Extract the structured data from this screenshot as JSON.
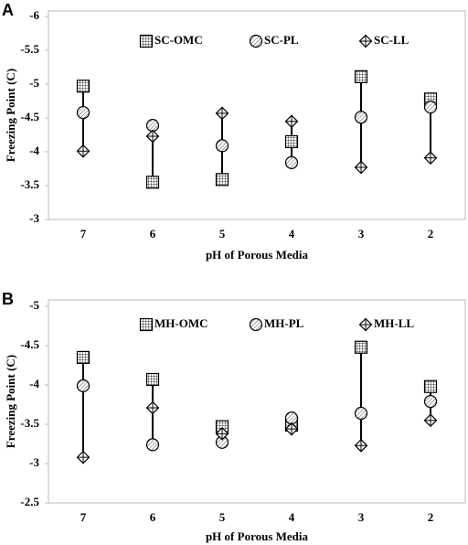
{
  "chart_data": [
    {
      "type": "scatter",
      "panel_label": "A",
      "x_label": "pH of Porous Media",
      "y_label": "Freezing Point (C)",
      "categories": [
        "7",
        "6",
        "5",
        "4",
        "3",
        "2"
      ],
      "ylim": [
        -3,
        -6
      ],
      "yticks": [
        -6,
        -5.5,
        -5,
        -4.5,
        -4,
        -3.5,
        -3
      ],
      "series": [
        {
          "name": "SC-OMC",
          "marker": "square",
          "color": "#000000",
          "values": [
            -4.97,
            -3.55,
            -3.59,
            -4.15,
            -5.11,
            -4.78
          ]
        },
        {
          "name": "SC-PL",
          "marker": "circle",
          "color": "#000000",
          "values": [
            -4.58,
            -4.39,
            -4.09,
            -3.84,
            -4.51,
            -4.66
          ]
        },
        {
          "name": "SC-LL",
          "marker": "diamond",
          "color": "#000000",
          "values": [
            -4.01,
            -4.23,
            -4.57,
            -4.45,
            -3.77,
            -3.91
          ]
        }
      ]
    },
    {
      "type": "scatter",
      "panel_label": "B",
      "x_label": "pH of Porous Media",
      "y_label": "Freezing Point (C)",
      "categories": [
        "7",
        "6",
        "5",
        "4",
        "3",
        "2"
      ],
      "ylim": [
        -2.5,
        -5
      ],
      "yticks": [
        -5,
        -4.5,
        -4,
        -3.5,
        -3,
        -2.5
      ],
      "series": [
        {
          "name": "MH-OMC",
          "marker": "square",
          "color": "#000000",
          "values": [
            -4.35,
            -4.07,
            -3.47,
            -3.49,
            -4.48,
            -3.98
          ]
        },
        {
          "name": "MH-PL",
          "marker": "circle",
          "color": "#000000",
          "values": [
            -3.99,
            -3.24,
            -3.27,
            -3.58,
            -3.64,
            -3.79
          ]
        },
        {
          "name": "MH-LL",
          "marker": "diamond",
          "color": "#000000",
          "values": [
            -3.08,
            -3.71,
            -3.38,
            -3.44,
            -3.23,
            -3.55
          ]
        }
      ]
    }
  ]
}
